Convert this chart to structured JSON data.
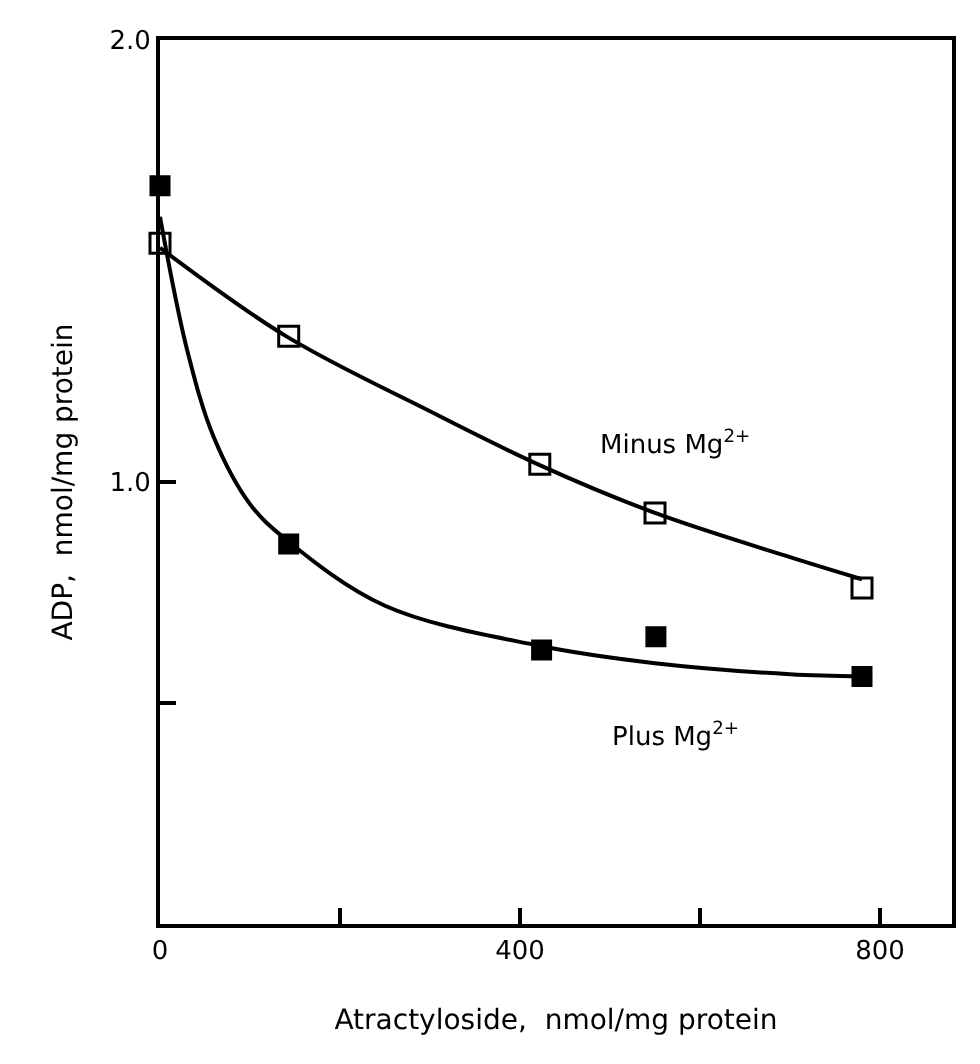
{
  "chart_data": {
    "type": "scatter",
    "xlabel": "Atractyloside,  nmol/mg protein",
    "ylabel": "ADP,  nmol/mg protein",
    "xlim": [
      0,
      880
    ],
    "ylim": [
      0,
      2.0
    ],
    "xticks": [
      0,
      {
        "value": 200,
        "label": null
      },
      400,
      {
        "value": 600,
        "label": null
      },
      800
    ],
    "yticks": [
      {
        "value": 0.5,
        "label": null
      },
      {
        "value": 1.0,
        "label": "1.0"
      },
      {
        "value": 2.0,
        "label": "2.0"
      }
    ],
    "series": [
      {
        "marker": "square",
        "color": "#000000",
        "x": [
          0,
          143,
          422,
          550,
          780
        ],
        "values": [
          1.54,
          1.33,
          1.04,
          0.93,
          0.76
        ]
      },
      {
        "marker": "square",
        "color": "#000000",
        "x": [
          0,
          143,
          424,
          551,
          780
        ],
        "values": [
          1.67,
          0.86,
          0.62,
          0.65,
          0.56
        ]
      },
      {
        "type": "line",
        "marker": "none",
        "name": "Minus Mg$^{2+}$",
        "color": "#000000",
        "x": [
          0,
          140,
          300,
          420,
          550,
          700,
          780
        ],
        "values": [
          1.53,
          1.33,
          1.16,
          1.04,
          0.93,
          0.83,
          0.78
        ]
      },
      {
        "type": "line",
        "marker": "none",
        "name": "Plus Mg$^{2+}$",
        "color": "#000000",
        "x": [
          0,
          30,
          60,
          100,
          140,
          250,
          420,
          550,
          700,
          780
        ],
        "values": [
          1.6,
          1.3,
          1.1,
          0.95,
          0.87,
          0.72,
          0.63,
          0.59,
          0.565,
          0.56
        ]
      }
    ]
  }
}
